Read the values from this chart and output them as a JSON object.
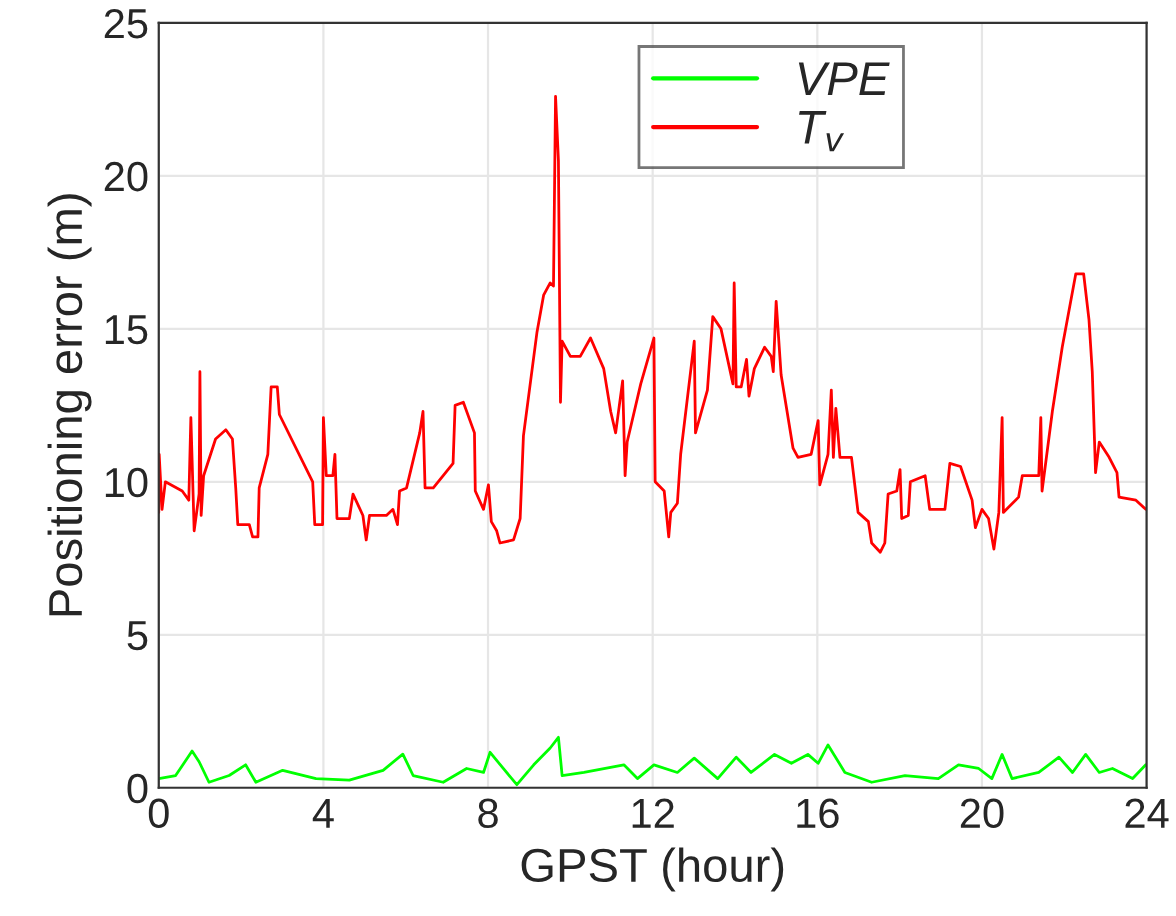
{
  "chart_data": {
    "type": "line",
    "xlabel": "GPST (hour)",
    "ylabel": "Positioning error (m)",
    "xlim": [
      0,
      24
    ],
    "xticks": [
      0,
      4,
      8,
      12,
      16,
      20,
      24
    ],
    "ylim": [
      0,
      25
    ],
    "yticks": [
      0,
      5,
      10,
      15,
      20,
      25
    ],
    "grid": true,
    "legend": "top",
    "line_style": "solid",
    "marker": "none",
    "series": [
      {
        "name": "VPE",
        "color": "#00ff00",
        "x": [
          0,
          0.41,
          0.81,
          0.98,
          1.22,
          1.71,
          2.11,
          2.36,
          3.01,
          3.82,
          4.63,
          5.45,
          5.93,
          6.18,
          6.91,
          7.48,
          7.89,
          8.05,
          8.37,
          8.7,
          9.11,
          9.51,
          9.71,
          9.8,
          10.33,
          11.3,
          11.63,
          12.03,
          12.6,
          13.01,
          13.58,
          14.03,
          14.39,
          14.96,
          15.37,
          15.77,
          16.02,
          16.26,
          16.67,
          17.32,
          18.13,
          18.94,
          19.43,
          19.92,
          20.24,
          20.49,
          20.73,
          21.38,
          21.87,
          22.2,
          22.52,
          22.85,
          23.17,
          23.66,
          23.98
        ],
        "values": [
          0.3,
          0.4,
          1.2,
          0.85,
          0.18,
          0.4,
          0.75,
          0.18,
          0.57,
          0.3,
          0.25,
          0.57,
          1.1,
          0.4,
          0.18,
          0.63,
          0.5,
          1.16,
          0.63,
          0.1,
          0.75,
          1.3,
          1.65,
          0.4,
          0.5,
          0.75,
          0.3,
          0.75,
          0.5,
          0.97,
          0.3,
          1.0,
          0.5,
          1.09,
          0.8,
          1.09,
          0.8,
          1.4,
          0.5,
          0.18,
          0.4,
          0.3,
          0.75,
          0.63,
          0.3,
          1.09,
          0.3,
          0.5,
          1.0,
          0.5,
          1.09,
          0.5,
          0.63,
          0.3,
          0.75
        ]
      },
      {
        "name": "T$_{v}$",
        "color": "#ff0000",
        "x": [
          0,
          0.01,
          0.08,
          0.16,
          0.57,
          0.73,
          0.78,
          0.86,
          0.98,
          1.0,
          1.03,
          1.09,
          1.38,
          1.63,
          1.79,
          1.87,
          1.92,
          2.2,
          2.28,
          2.41,
          2.44,
          2.65,
          2.73,
          2.88,
          2.93,
          3.74,
          3.79,
          3.98,
          4.0,
          4.07,
          4.23,
          4.28,
          4.33,
          4.63,
          4.72,
          4.96,
          5.04,
          5.12,
          5.53,
          5.69,
          5.8,
          5.85,
          6.02,
          6.34,
          6.42,
          6.47,
          6.67,
          7.15,
          7.2,
          7.4,
          7.67,
          7.69,
          7.89,
          8.01,
          8.08,
          8.21,
          8.29,
          8.62,
          8.78,
          8.86,
          9.19,
          9.35,
          9.51,
          9.59,
          9.64,
          9.71,
          9.76,
          9.8,
          10.0,
          10.24,
          10.49,
          10.81,
          10.98,
          11.1,
          11.27,
          11.33,
          11.38,
          11.71,
          12.03,
          12.06,
          12.28,
          12.39,
          12.44,
          12.6,
          12.68,
          13.01,
          13.04,
          13.33,
          13.46,
          13.66,
          13.95,
          13.98,
          14.03,
          14.15,
          14.28,
          14.34,
          14.47,
          14.72,
          14.88,
          14.93,
          15.0,
          15.12,
          15.41,
          15.53,
          15.85,
          16.02,
          16.06,
          16.18,
          16.26,
          16.34,
          16.39,
          16.45,
          16.55,
          16.83,
          16.99,
          17.24,
          17.32,
          17.53,
          17.64,
          17.72,
          17.93,
          18.01,
          18.05,
          18.21,
          18.26,
          18.62,
          18.73,
          19.1,
          19.22,
          19.48,
          19.76,
          19.84,
          20.0,
          20.16,
          20.29,
          20.41,
          20.49,
          20.52,
          20.89,
          20.98,
          21.38,
          21.43,
          21.46,
          21.71,
          21.95,
          22.28,
          22.47,
          22.6,
          22.68,
          22.76,
          22.85,
          23.09,
          23.28,
          23.33,
          23.74,
          23.98
        ],
        "values": [
          9.0,
          10.9,
          9.1,
          10.0,
          9.7,
          9.4,
          12.1,
          8.4,
          9.6,
          13.6,
          8.9,
          10.2,
          11.4,
          11.7,
          11.4,
          9.8,
          8.6,
          8.6,
          8.2,
          8.2,
          9.8,
          10.9,
          13.1,
          13.1,
          12.2,
          10.0,
          8.6,
          8.6,
          12.1,
          10.2,
          10.2,
          10.9,
          8.8,
          8.8,
          9.6,
          8.9,
          8.1,
          8.9,
          8.9,
          9.1,
          8.6,
          9.7,
          9.8,
          11.6,
          12.3,
          9.8,
          9.8,
          10.6,
          12.5,
          12.6,
          11.6,
          9.7,
          9.1,
          9.9,
          8.7,
          8.4,
          8.0,
          8.1,
          8.8,
          11.5,
          14.9,
          16.1,
          16.5,
          16.4,
          22.6,
          20.5,
          12.6,
          14.6,
          14.1,
          14.1,
          14.7,
          13.7,
          12.3,
          11.6,
          13.3,
          10.2,
          11.3,
          13.2,
          14.7,
          10.0,
          9.7,
          8.2,
          9.0,
          9.3,
          10.9,
          14.6,
          11.6,
          13.0,
          15.4,
          15.0,
          13.2,
          16.5,
          13.1,
          13.1,
          14.0,
          12.8,
          13.7,
          14.4,
          14.1,
          13.6,
          15.9,
          13.5,
          11.1,
          10.8,
          10.9,
          12.0,
          9.9,
          10.5,
          10.9,
          13.0,
          10.8,
          12.4,
          10.8,
          10.8,
          9.0,
          8.7,
          8.0,
          7.7,
          8.0,
          9.6,
          9.7,
          10.4,
          8.8,
          8.9,
          10.0,
          10.2,
          9.1,
          9.1,
          10.6,
          10.5,
          9.4,
          8.5,
          9.1,
          8.8,
          7.8,
          9.0,
          12.1,
          9.0,
          9.5,
          10.2,
          10.2,
          12.1,
          9.7,
          12.3,
          14.4,
          16.8,
          16.8,
          15.3,
          13.6,
          10.3,
          11.3,
          10.8,
          10.3,
          9.5,
          9.4,
          9.1
        ]
      }
    ]
  }
}
